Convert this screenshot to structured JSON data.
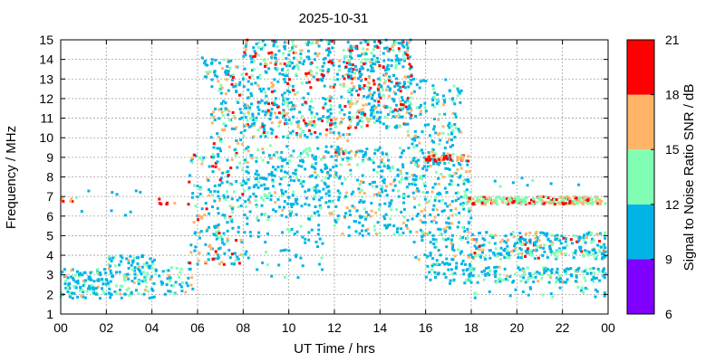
{
  "chart_data": {
    "type": "scatter",
    "title": "2025-10-31",
    "xlabel": "UT Time / hrs",
    "ylabel": "Frequency / MHz",
    "xlim": [
      0,
      24
    ],
    "ylim": [
      1,
      15
    ],
    "x_ticks": [
      "00",
      "02",
      "04",
      "06",
      "08",
      "10",
      "12",
      "14",
      "16",
      "18",
      "20",
      "22",
      "00"
    ],
    "y_ticks": [
      "1",
      "2",
      "3",
      "4",
      "5",
      "6",
      "7",
      "8",
      "9",
      "10",
      "11",
      "12",
      "13",
      "14",
      "15"
    ],
    "grid": true,
    "colorbar": {
      "label": "Signal to Noise Ratio SNR / dB",
      "range": [
        6,
        21
      ],
      "ticks": [
        "6",
        "9",
        "12",
        "15",
        "18",
        "21"
      ],
      "bins": [
        {
          "min": 6,
          "max": 9,
          "color": "#7f00ff"
        },
        {
          "min": 9,
          "max": 12,
          "color": "#00b4e6"
        },
        {
          "min": 12,
          "max": 15,
          "color": "#80ffb4"
        },
        {
          "min": 15,
          "max": 18,
          "color": "#ffb468"
        },
        {
          "min": 18,
          "max": 21,
          "color": "#ff0000"
        }
      ]
    },
    "density_regions": [
      {
        "x": [
          0.0,
          2.0
        ],
        "y": [
          1.8,
          3.3
        ],
        "n": 110,
        "snr": [
          9,
          16
        ]
      },
      {
        "x": [
          2.0,
          4.2
        ],
        "y": [
          1.8,
          4.0
        ],
        "n": 130,
        "snr": [
          9,
          16
        ]
      },
      {
        "x": [
          4.2,
          5.8
        ],
        "y": [
          2.0,
          3.4
        ],
        "n": 40,
        "snr": [
          9,
          16
        ]
      },
      {
        "x": [
          0.0,
          0.6
        ],
        "y": [
          6.7,
          6.9
        ],
        "n": 6,
        "snr": [
          17,
          20
        ]
      },
      {
        "x": [
          0.6,
          3.5
        ],
        "y": [
          6.0,
          7.4
        ],
        "n": 10,
        "snr": [
          9,
          15
        ]
      },
      {
        "x": [
          4.3,
          5.0
        ],
        "y": [
          6.6,
          6.9
        ],
        "n": 6,
        "snr": [
          17,
          20
        ]
      },
      {
        "x": [
          5.6,
          7.0
        ],
        "y": [
          3.5,
          9.2
        ],
        "n": 90,
        "snr": [
          9,
          20
        ]
      },
      {
        "x": [
          5.8,
          6.7
        ],
        "y": [
          12.5,
          14.2
        ],
        "n": 12,
        "snr": [
          9,
          19
        ]
      },
      {
        "x": [
          6.6,
          8.0
        ],
        "y": [
          3.5,
          14.0
        ],
        "n": 220,
        "snr": [
          9,
          20
        ]
      },
      {
        "x": [
          8.0,
          12.0
        ],
        "y": [
          10.0,
          15.0
        ],
        "n": 420,
        "snr": [
          9,
          21
        ]
      },
      {
        "x": [
          8.0,
          12.0
        ],
        "y": [
          6.0,
          9.6
        ],
        "n": 260,
        "snr": [
          9,
          16
        ]
      },
      {
        "x": [
          8.0,
          11.5
        ],
        "y": [
          2.8,
          6.0
        ],
        "n": 60,
        "snr": [
          9,
          14
        ]
      },
      {
        "x": [
          12.0,
          12.8
        ],
        "y": [
          9.0,
          14.6
        ],
        "n": 70,
        "snr": [
          9,
          20
        ]
      },
      {
        "x": [
          12.6,
          15.4
        ],
        "y": [
          10.5,
          15.0
        ],
        "n": 360,
        "snr": [
          9,
          21
        ]
      },
      {
        "x": [
          12.0,
          15.5
        ],
        "y": [
          5.0,
          9.5
        ],
        "n": 240,
        "snr": [
          9,
          17
        ]
      },
      {
        "x": [
          15.2,
          17.6
        ],
        "y": [
          8.5,
          13.0
        ],
        "n": 140,
        "snr": [
          9,
          17
        ]
      },
      {
        "x": [
          15.5,
          18.0
        ],
        "y": [
          3.5,
          9.0
        ],
        "n": 230,
        "snr": [
          9,
          18
        ]
      },
      {
        "x": [
          16.0,
          17.9
        ],
        "y": [
          8.8,
          9.1
        ],
        "n": 40,
        "snr": [
          17,
          21
        ]
      },
      {
        "x": [
          16.0,
          18.0
        ],
        "y": [
          2.5,
          3.6
        ],
        "n": 40,
        "snr": [
          9,
          14
        ]
      },
      {
        "x": [
          17.8,
          23.9
        ],
        "y": [
          6.6,
          7.0
        ],
        "n": 230,
        "snr": [
          12,
          21
        ]
      },
      {
        "x": [
          17.8,
          23.9
        ],
        "y": [
          3.8,
          5.2
        ],
        "n": 280,
        "snr": [
          9,
          19
        ]
      },
      {
        "x": [
          17.8,
          23.9
        ],
        "y": [
          2.6,
          3.4
        ],
        "n": 150,
        "snr": [
          9,
          16
        ]
      },
      {
        "x": [
          18.0,
          23.9
        ],
        "y": [
          1.8,
          2.4
        ],
        "n": 25,
        "snr": [
          9,
          14
        ]
      },
      {
        "x": [
          19.0,
          23.9
        ],
        "y": [
          7.5,
          8.0
        ],
        "n": 8,
        "snr": [
          9,
          13
        ]
      }
    ]
  }
}
